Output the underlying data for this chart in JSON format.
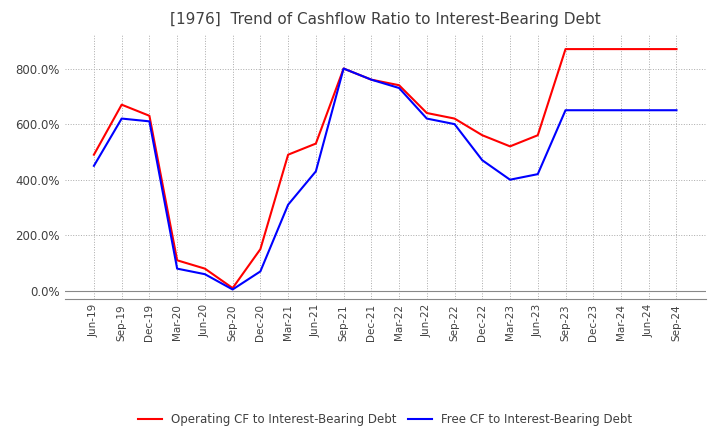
{
  "title": "[1976]  Trend of Cashflow Ratio to Interest-Bearing Debt",
  "title_fontsize": 11,
  "title_color": "#404040",
  "x_labels": [
    "Jun-19",
    "Sep-19",
    "Dec-19",
    "Mar-20",
    "Jun-20",
    "Sep-20",
    "Dec-20",
    "Mar-21",
    "Jun-21",
    "Sep-21",
    "Dec-21",
    "Mar-22",
    "Jun-22",
    "Sep-22",
    "Dec-22",
    "Mar-23",
    "Jun-23",
    "Sep-23",
    "Dec-23",
    "Mar-24",
    "Jun-24",
    "Sep-24"
  ],
  "operating_cf": [
    490,
    670,
    630,
    110,
    80,
    10,
    150,
    490,
    530,
    800,
    760,
    740,
    640,
    620,
    560,
    520,
    560,
    870,
    870,
    870,
    870,
    870
  ],
  "free_cf": [
    450,
    620,
    610,
    80,
    60,
    5,
    70,
    310,
    430,
    800,
    760,
    730,
    620,
    600,
    470,
    400,
    420,
    650,
    650,
    650,
    650,
    650
  ],
  "operating_color": "#ff0000",
  "free_color": "#0000ff",
  "ylim": [
    -30,
    920
  ],
  "yticks": [
    0,
    200,
    400,
    600,
    800
  ],
  "background_color": "#ffffff",
  "grid_color": "#aaaaaa",
  "legend_operating": "Operating CF to Interest-Bearing Debt",
  "legend_free": "Free CF to Interest-Bearing Debt"
}
